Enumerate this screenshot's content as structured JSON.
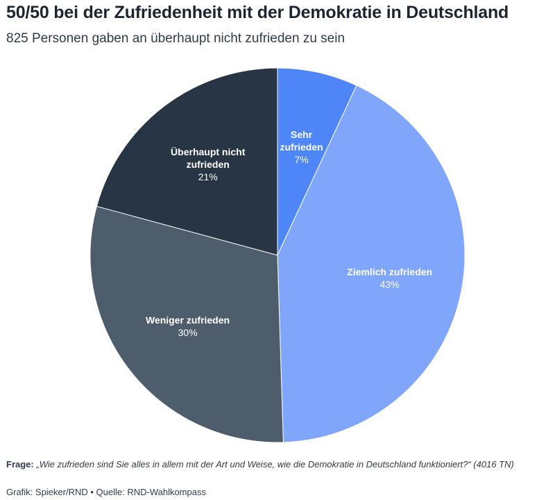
{
  "header": {
    "title": "50/50 bei der Zufriedenheit mit der Demokratie in Deutschland",
    "subtitle": "825 Personen gaben an überhaupt nicht zufrieden zu sein"
  },
  "chart_data": {
    "type": "pie",
    "title": "50/50 bei der Zufriedenheit mit der Demokratie in Deutschland",
    "subtitle": "825 Personen gaben an überhaupt nicht zufrieden zu sein",
    "slices": [
      {
        "label": "Sehr zufrieden",
        "label_lines": [
          "Sehr",
          "zufrieden"
        ],
        "value": 7,
        "value_label": "7%",
        "color": "#4f86f7",
        "text_color": "#ffffff"
      },
      {
        "label": "Ziemlich zufrieden",
        "label_lines": [
          "Ziemlich zufrieden"
        ],
        "value": 43,
        "value_label": "43%",
        "color": "#7fa6fb",
        "text_color": "#ffffff"
      },
      {
        "label": "Weniger zufrieden",
        "label_lines": [
          "Weniger zufrieden"
        ],
        "value": 30,
        "value_label": "30%",
        "color": "#4e5d6c",
        "text_color": "#ffffff"
      },
      {
        "label": "Überhaupt nicht zufrieden",
        "label_lines": [
          "Überhaupt nicht",
          "zufrieden"
        ],
        "value": 21,
        "value_label": "21%",
        "color": "#283544",
        "text_color": "#ffffff"
      }
    ]
  },
  "footer": {
    "question_label": "Frage:",
    "question_text": "„Wie zufrieden sind Sie alles in allem mit der Art und Weise, wie die Demokratie in Deutschland funktioniert?“ (4016 TN)",
    "credits": "Grafik: Spieker/RND • Quelle: RND-Wahlkompass"
  }
}
